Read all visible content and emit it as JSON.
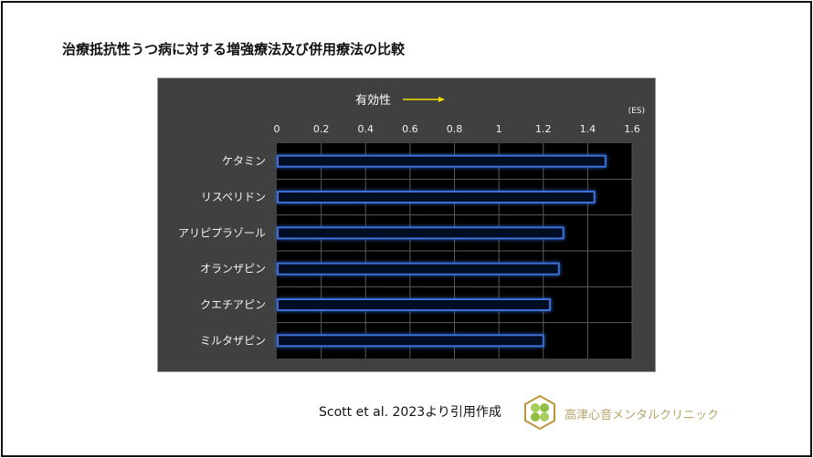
{
  "title": "治療抵抗性うつ病に対する増強療法及び併用療法の比較",
  "chart_data": {
    "type": "bar",
    "orientation": "horizontal",
    "annotation": "有効性",
    "unit_label": "(ES)",
    "categories": [
      "ケタミン",
      "リスペリドン",
      "アリピプラゾール",
      "オランザピン",
      "クエチアピン",
      "ミルタザピン"
    ],
    "values": [
      1.48,
      1.43,
      1.29,
      1.27,
      1.23,
      1.2
    ],
    "xlim": [
      0,
      1.6
    ],
    "ticks": [
      "0",
      "0.2",
      "0.4",
      "0.6",
      "0.8",
      "1",
      "1.2",
      "1.4",
      "1.6"
    ],
    "grid": true,
    "colors": {
      "panel": "#404040",
      "plot": "#000000",
      "bar": "#3a6fd8",
      "arrow": "#f0e000"
    }
  },
  "footer": {
    "citation": "Scott et al. 2023より引用作成",
    "clinic_name": "高津心音メンタルクリニック"
  }
}
